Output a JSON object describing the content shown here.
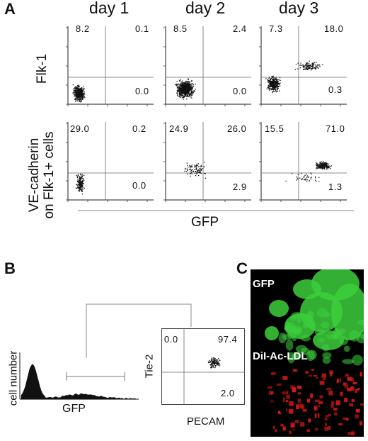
{
  "panelA": {
    "letter": "A",
    "days": [
      "day 1",
      "day 2",
      "day 3"
    ],
    "row_labels": {
      "top": "Flk-1",
      "bottom_line1": "VE-cadherin",
      "bottom_line2": "on Flk-1+ cells"
    },
    "x_axis_title": "GFP",
    "plots": [
      {
        "row": "Flk-1",
        "day": "day 1",
        "upper_left": "8.2",
        "upper_right": "0.1",
        "lower_right": "0.0"
      },
      {
        "row": "Flk-1",
        "day": "day 2",
        "upper_left": "8.5",
        "upper_right": "2.4",
        "lower_right": "0.0"
      },
      {
        "row": "Flk-1",
        "day": "day 3",
        "upper_left": "7.3",
        "upper_right": "18.0",
        "lower_right": "0.3"
      },
      {
        "row": "VE-cadherin",
        "day": "day 1",
        "upper_left": "29.0",
        "upper_right": "0.2",
        "lower_right": "0.0"
      },
      {
        "row": "VE-cadherin",
        "day": "day 2",
        "upper_left": "24.9",
        "upper_right": "26.0",
        "lower_right": "2.9"
      },
      {
        "row": "VE-cadherin",
        "day": "day 3",
        "upper_left": "15.5",
        "upper_right": "71.0",
        "lower_right": "1.3"
      }
    ]
  },
  "panelB": {
    "letter": "B",
    "histogram": {
      "y_label": "cell number",
      "x_label": "GFP"
    },
    "dotplot": {
      "y_label": "Tie-2",
      "x_label": "PECAM",
      "upper_left": "0.0",
      "upper_right": "97.4",
      "lower_right": "2.0"
    }
  },
  "panelC": {
    "letter": "C",
    "top_label": "GFP",
    "bottom_label": "DiI-Ac-LDL",
    "colors": {
      "top": "#3ccf3c",
      "bottom": "#d01818"
    }
  }
}
